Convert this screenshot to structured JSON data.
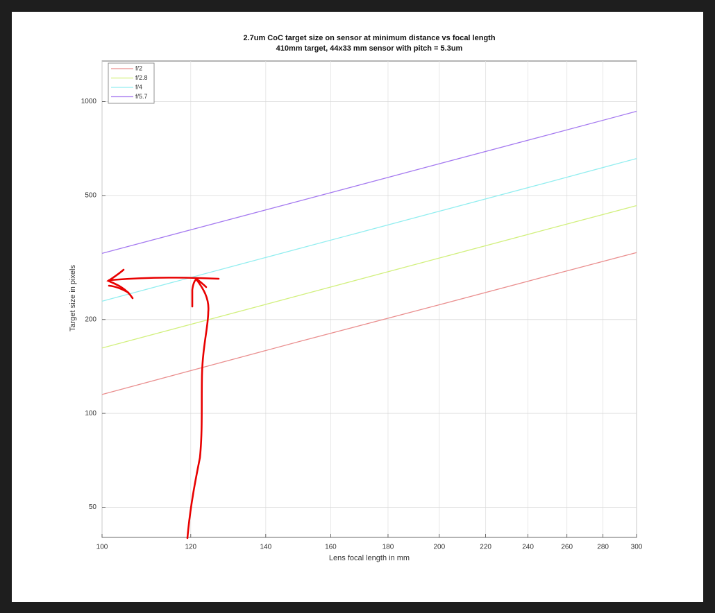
{
  "chart_data": {
    "type": "line",
    "title": "2.7um CoC target size on sensor at minimum distance vs focal length",
    "subtitle": "410mm target, 44x33 mm sensor with pitch = 5.3um",
    "xlabel": "Lens focal length in mm",
    "ylabel": "Target size in pixels",
    "x": [
      100,
      150,
      200,
      250,
      300
    ],
    "series": [
      {
        "name": "f/2",
        "color": "#ea8f8f",
        "values": [
          115,
          170,
          223,
          276,
          328
        ]
      },
      {
        "name": "f/2.8",
        "color": "#d2f07e",
        "values": [
          162,
          239,
          315,
          390,
          464
        ]
      },
      {
        "name": "f/4",
        "color": "#92eef0",
        "values": [
          229,
          338,
          445,
          551,
          657
        ]
      },
      {
        "name": "f/5.7",
        "color": "#a57af0",
        "values": [
          326,
          480,
          632,
          782,
          931
        ]
      }
    ],
    "xlim": [
      100,
      300
    ],
    "xticks": [
      100,
      120,
      140,
      160,
      180,
      200,
      220,
      240,
      260,
      280,
      300
    ],
    "ylim": [
      40,
      1350
    ],
    "yticks": [
      50,
      100,
      200,
      500,
      1000
    ],
    "xscale": "log",
    "yscale": "log",
    "grid": true,
    "legend": "top-left"
  }
}
